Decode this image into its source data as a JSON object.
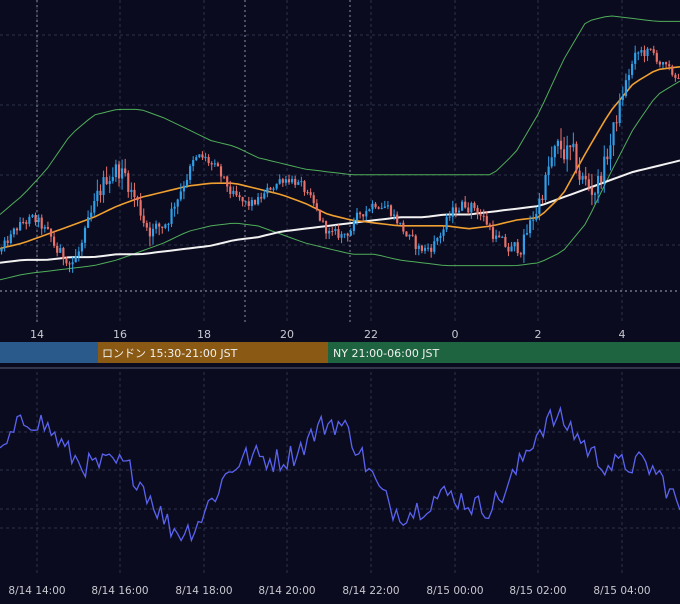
{
  "colors": {
    "background": "#0b0b1f",
    "grid": "#2e3348",
    "candle_up": "#2f9fe8",
    "candle_down": "#e8726a",
    "bollinger": "#4fae5a",
    "ma_short": "#f0a030",
    "ma_long": "#f2f2f2",
    "oscillator": "#5a63f0",
    "axis_text": "#c8c8d0",
    "session_tokyo": "#2a5a8c",
    "session_london": "#8a5a14",
    "session_ny": "#1f6440"
  },
  "sessions": [
    {
      "label": ""
    },
    {
      "label": "ロンドン 15:30-21:00 JST"
    },
    {
      "label": "NY 21:00-06:00 JST"
    }
  ],
  "chart_data": [
    {
      "type": "candlestick",
      "title": "",
      "x_ticks": [
        "14",
        "16",
        "18",
        "20",
        "22",
        "0",
        "2",
        "4"
      ],
      "ylim": [
        0,
        100
      ],
      "grid": true,
      "legend": "none",
      "candles": [],
      "ma_short": [
        16,
        18,
        21,
        24,
        27,
        31,
        34,
        36,
        38,
        39,
        39,
        37,
        35,
        32,
        28,
        26,
        25,
        24,
        24,
        24,
        23,
        24,
        26,
        27,
        35,
        50,
        64,
        74,
        79,
        80
      ],
      "ma_long": [
        11,
        12,
        12,
        13,
        13,
        14,
        14,
        15,
        16,
        17,
        19,
        20,
        22,
        23,
        24,
        25,
        26,
        27,
        27,
        28,
        28,
        29,
        30,
        31,
        34,
        37,
        40,
        43,
        45,
        47
      ],
      "bb_upper": [
        28,
        35,
        44,
        56,
        63,
        65,
        65,
        62,
        58,
        54,
        52,
        48,
        46,
        44,
        43,
        42,
        42,
        42,
        42,
        42,
        42,
        42,
        50,
        64,
        82,
        96,
        98,
        97,
        96,
        96
      ],
      "bb_lower": [
        5,
        7,
        8,
        9,
        10,
        12,
        15,
        18,
        22,
        24,
        25,
        24,
        21,
        18,
        16,
        14,
        14,
        12,
        11,
        10,
        10,
        10,
        10,
        11,
        15,
        25,
        42,
        58,
        70,
        75
      ]
    },
    {
      "type": "line",
      "title": "",
      "x_ticks": [
        "8/14 14:00",
        "8/14 16:00",
        "8/14 18:00",
        "8/14 20:00",
        "8/14 22:00",
        "8/15 00:00",
        "8/15 02:00",
        "8/15 04:00"
      ],
      "ylim": [
        0,
        100
      ],
      "grid": true,
      "values": []
    }
  ]
}
